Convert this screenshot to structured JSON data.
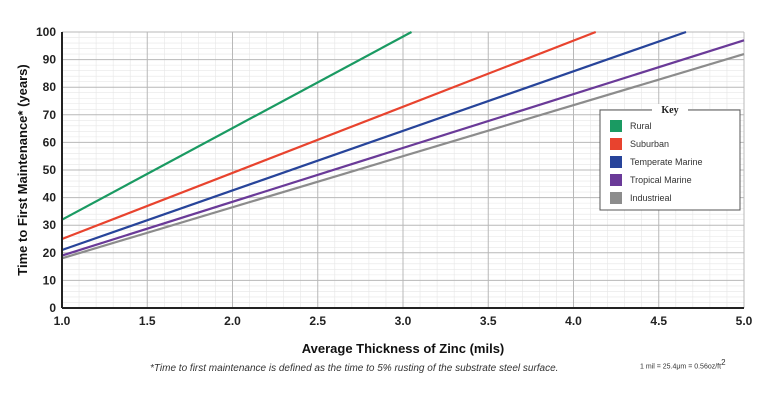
{
  "chart_data": {
    "type": "line",
    "title": "",
    "xlabel": "Average Thickness of Zinc (mils)",
    "ylabel": "Time to First  Maintenance* (years)",
    "xlim": [
      1.0,
      5.0
    ],
    "ylim": [
      0,
      100
    ],
    "x_ticks": [
      "1.0",
      "1.5",
      "2.0",
      "2.5",
      "3.0",
      "3.5",
      "4.0",
      "4.5",
      "5.0"
    ],
    "y_ticks": [
      "0",
      "10",
      "20",
      "30",
      "40",
      "50",
      "60",
      "70",
      "80",
      "90",
      "100"
    ],
    "grid": true,
    "legend_title": "Key",
    "legend_position": "right",
    "series": [
      {
        "name": "Rural",
        "color": "#1a9a62",
        "points": [
          [
            1.0,
            32
          ],
          [
            3.05,
            100
          ]
        ]
      },
      {
        "name": "Suburban",
        "color": "#e8432e",
        "points": [
          [
            1.0,
            25
          ],
          [
            4.13,
            100
          ]
        ]
      },
      {
        "name": "Temperate Marine",
        "color": "#27449a",
        "points": [
          [
            1.0,
            21
          ],
          [
            4.66,
            100
          ]
        ]
      },
      {
        "name": "Tropical Marine",
        "color": "#6a3a98",
        "points": [
          [
            1.0,
            19
          ],
          [
            5.0,
            97
          ]
        ]
      },
      {
        "name": "Industrieal",
        "color": "#8c8c8c",
        "points": [
          [
            1.0,
            18
          ],
          [
            5.0,
            92
          ]
        ]
      }
    ]
  },
  "footnote": "*Time to first maintenance is defined as the time to 5% rusting of the substrate steel surface.",
  "unit_note": "1 mil = 25.4μm = 0.56oz/ft",
  "unit_note_sup": "2"
}
